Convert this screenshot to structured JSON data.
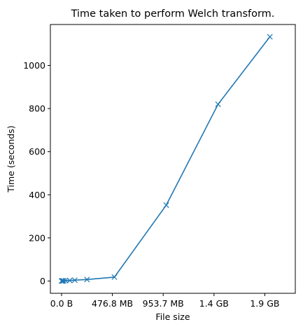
{
  "chart_data": {
    "type": "line",
    "title": "Time taken to perform Welch transform.",
    "xlabel": "File size",
    "ylabel": "Time (seconds)",
    "xlim": [
      -0.11,
      2.3
    ],
    "ylim": [
      -57,
      1190
    ],
    "grid": false,
    "legend": "none",
    "x_ticks": [
      {
        "value": 0.0,
        "label": "0.0 B"
      },
      {
        "value": 0.5,
        "label": "476.8 MB"
      },
      {
        "value": 1.0,
        "label": "953.7 MB"
      },
      {
        "value": 1.5,
        "label": "1.4 GB"
      },
      {
        "value": 2.0,
        "label": "1.9 GB"
      }
    ],
    "y_ticks": [
      0,
      200,
      400,
      600,
      800,
      1000
    ],
    "series": [
      {
        "color": "#1f77b4",
        "marker": "x",
        "x": [
          0.0,
          0.005,
          0.01,
          0.02,
          0.04,
          0.08,
          0.13,
          0.25,
          0.52,
          1.03,
          1.54,
          2.05
        ],
        "y": [
          0.1,
          0.2,
          0.4,
          0.8,
          1.5,
          2.5,
          4,
          7,
          18,
          352,
          820,
          1133
        ]
      }
    ]
  }
}
